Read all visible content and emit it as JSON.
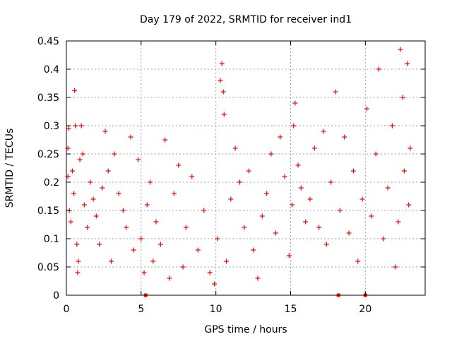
{
  "chart_data": {
    "type": "scatter",
    "title": "Day 179 of 2022, SRMTID for receiver ind1",
    "xlabel": "GPS time / hours",
    "ylabel": "SRMTID / TECUs",
    "xlim": [
      0,
      24
    ],
    "ylim": [
      0,
      0.45
    ],
    "x_ticks": [
      0,
      5,
      10,
      15,
      20
    ],
    "x_tick_labels": [
      "0",
      "5",
      "10",
      "15",
      "20"
    ],
    "y_ticks": [
      0,
      0.05,
      0.1,
      0.15,
      0.2,
      0.25,
      0.3,
      0.35,
      0.4,
      0.45
    ],
    "y_tick_labels": [
      "0",
      "0.05",
      "0.1",
      "0.15",
      "0.2",
      "0.25",
      "0.3",
      "0.35",
      "0.4",
      "0.45"
    ],
    "grid": true,
    "marker": "+",
    "color": "#ff0000",
    "series": [
      {
        "name": "SRMTID",
        "points": [
          [
            0.1,
            0.26
          ],
          [
            0.1,
            0.21
          ],
          [
            0.15,
            0.295
          ],
          [
            0.2,
            0.15
          ],
          [
            0.3,
            0.13
          ],
          [
            0.4,
            0.22
          ],
          [
            0.5,
            0.18
          ],
          [
            0.55,
            0.362
          ],
          [
            0.6,
            0.3
          ],
          [
            0.7,
            0.09
          ],
          [
            0.75,
            0.04
          ],
          [
            0.8,
            0.06
          ],
          [
            0.9,
            0.24
          ],
          [
            1.0,
            0.3
          ],
          [
            1.1,
            0.25
          ],
          [
            1.2,
            0.16
          ],
          [
            1.4,
            0.12
          ],
          [
            1.6,
            0.2
          ],
          [
            1.8,
            0.17
          ],
          [
            2.0,
            0.14
          ],
          [
            2.2,
            0.09
          ],
          [
            2.4,
            0.19
          ],
          [
            2.6,
            0.29
          ],
          [
            2.8,
            0.22
          ],
          [
            3.0,
            0.06
          ],
          [
            3.2,
            0.25
          ],
          [
            3.5,
            0.18
          ],
          [
            3.8,
            0.15
          ],
          [
            4.0,
            0.12
          ],
          [
            4.3,
            0.28
          ],
          [
            4.5,
            0.08
          ],
          [
            4.8,
            0.24
          ],
          [
            5.0,
            0.1
          ],
          [
            5.2,
            0.04
          ],
          [
            5.4,
            0.16
          ],
          [
            5.6,
            0.2
          ],
          [
            5.8,
            0.06
          ],
          [
            6.0,
            0.13
          ],
          [
            6.3,
            0.09
          ],
          [
            6.6,
            0.275
          ],
          [
            6.9,
            0.03
          ],
          [
            7.2,
            0.18
          ],
          [
            7.5,
            0.23
          ],
          [
            7.8,
            0.05
          ],
          [
            8.0,
            0.12
          ],
          [
            8.4,
            0.21
          ],
          [
            8.8,
            0.08
          ],
          [
            9.2,
            0.15
          ],
          [
            9.6,
            0.04
          ],
          [
            9.9,
            0.02
          ],
          [
            10.1,
            0.1
          ],
          [
            10.3,
            0.38
          ],
          [
            10.4,
            0.41
          ],
          [
            10.5,
            0.36
          ],
          [
            10.55,
            0.32
          ],
          [
            10.7,
            0.06
          ],
          [
            11.0,
            0.17
          ],
          [
            11.3,
            0.26
          ],
          [
            11.6,
            0.2
          ],
          [
            11.9,
            0.12
          ],
          [
            12.2,
            0.22
          ],
          [
            12.5,
            0.08
          ],
          [
            12.8,
            0.03
          ],
          [
            13.1,
            0.14
          ],
          [
            13.4,
            0.18
          ],
          [
            13.7,
            0.25
          ],
          [
            14.0,
            0.11
          ],
          [
            14.3,
            0.28
          ],
          [
            14.6,
            0.21
          ],
          [
            14.9,
            0.07
          ],
          [
            15.1,
            0.16
          ],
          [
            15.2,
            0.3
          ],
          [
            15.3,
            0.34
          ],
          [
            15.5,
            0.23
          ],
          [
            15.7,
            0.19
          ],
          [
            16.0,
            0.13
          ],
          [
            16.3,
            0.17
          ],
          [
            16.6,
            0.26
          ],
          [
            16.9,
            0.12
          ],
          [
            17.2,
            0.29
          ],
          [
            17.4,
            0.09
          ],
          [
            17.7,
            0.2
          ],
          [
            18.0,
            0.36
          ],
          [
            18.3,
            0.15
          ],
          [
            18.6,
            0.28
          ],
          [
            18.9,
            0.11
          ],
          [
            19.2,
            0.22
          ],
          [
            19.5,
            0.06
          ],
          [
            19.8,
            0.17
          ],
          [
            20.1,
            0.33
          ],
          [
            20.4,
            0.14
          ],
          [
            20.7,
            0.25
          ],
          [
            20.9,
            0.4
          ],
          [
            21.2,
            0.1
          ],
          [
            21.5,
            0.19
          ],
          [
            21.8,
            0.3
          ],
          [
            22.0,
            0.05
          ],
          [
            22.2,
            0.13
          ],
          [
            22.35,
            0.435
          ],
          [
            22.5,
            0.35
          ],
          [
            22.6,
            0.22
          ],
          [
            22.8,
            0.41
          ],
          [
            22.9,
            0.16
          ],
          [
            23.0,
            0.26
          ]
        ]
      }
    ],
    "zero_markers": [
      [
        5.3,
        0
      ],
      [
        18.2,
        0
      ],
      [
        20.0,
        0
      ]
    ]
  }
}
